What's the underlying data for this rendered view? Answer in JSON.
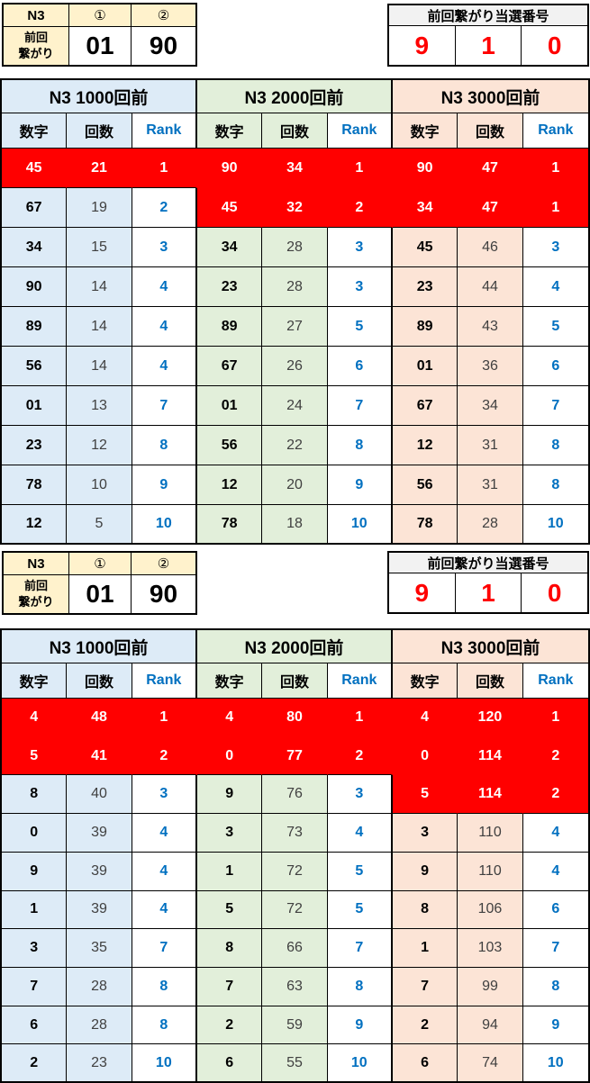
{
  "colors": {
    "red": "#FF0000",
    "blue": "#0070C0",
    "count_text": "#404040",
    "light_blue": "#DDEBF7",
    "light_green": "#E2EFDA",
    "light_orange": "#FCE4D6",
    "cream": "#FFF2CC",
    "box_header_gray": "#F2F2F2",
    "border": "#000000"
  },
  "sections": [
    {
      "link_table": {
        "title": "N3",
        "col1": "①",
        "col2": "②",
        "row_label": "前回\n繋がり",
        "values": [
          "01",
          "90"
        ]
      },
      "winning_box": {
        "title": "前回繋がり当選番号",
        "digits": [
          "9",
          "1",
          "0"
        ]
      },
      "main_table": {
        "col_headers": [
          "数字",
          "回数",
          "Rank"
        ],
        "groups": [
          {
            "title": "N3 1000回前",
            "color_key": "light_blue",
            "rows": [
              [
                "45",
                "21",
                "1"
              ],
              [
                "67",
                "19",
                "2"
              ],
              [
                "34",
                "15",
                "3"
              ],
              [
                "90",
                "14",
                "4"
              ],
              [
                "89",
                "14",
                "4"
              ],
              [
                "56",
                "14",
                "4"
              ],
              [
                "01",
                "13",
                "7"
              ],
              [
                "23",
                "12",
                "8"
              ],
              [
                "78",
                "10",
                "9"
              ],
              [
                "12",
                "5",
                "10"
              ]
            ]
          },
          {
            "title": "N3 2000回前",
            "color_key": "light_green",
            "rows": [
              [
                "90",
                "34",
                "1"
              ],
              [
                "45",
                "32",
                "2"
              ],
              [
                "34",
                "28",
                "3"
              ],
              [
                "23",
                "28",
                "3"
              ],
              [
                "89",
                "27",
                "5"
              ],
              [
                "67",
                "26",
                "6"
              ],
              [
                "01",
                "24",
                "7"
              ],
              [
                "56",
                "22",
                "8"
              ],
              [
                "12",
                "20",
                "9"
              ],
              [
                "78",
                "18",
                "10"
              ]
            ]
          },
          {
            "title": "N3 3000回前",
            "color_key": "light_orange",
            "rows": [
              [
                "90",
                "47",
                "1"
              ],
              [
                "34",
                "47",
                "1"
              ],
              [
                "45",
                "46",
                "3"
              ],
              [
                "23",
                "44",
                "4"
              ],
              [
                "89",
                "43",
                "5"
              ],
              [
                "01",
                "36",
                "6"
              ],
              [
                "67",
                "34",
                "7"
              ],
              [
                "12",
                "31",
                "8"
              ],
              [
                "56",
                "31",
                "8"
              ],
              [
                "78",
                "28",
                "10"
              ]
            ]
          }
        ],
        "red_spans": [
          {
            "row": 0,
            "from": 0,
            "to": 8
          },
          {
            "row": 1,
            "from": 3,
            "to": 8
          }
        ]
      }
    },
    {
      "link_table": {
        "title": "N3",
        "col1": "①",
        "col2": "②",
        "row_label": "前回\n繋がり",
        "values": [
          "01",
          "90"
        ]
      },
      "winning_box": {
        "title": "前回繋がり当選番号",
        "digits": [
          "9",
          "1",
          "0"
        ]
      },
      "main_table": {
        "col_headers": [
          "数字",
          "回数",
          "Rank"
        ],
        "groups": [
          {
            "title": "N3 1000回前",
            "color_key": "light_blue",
            "rows": [
              [
                "4",
                "48",
                "1"
              ],
              [
                "5",
                "41",
                "2"
              ],
              [
                "8",
                "40",
                "3"
              ],
              [
                "0",
                "39",
                "4"
              ],
              [
                "9",
                "39",
                "4"
              ],
              [
                "1",
                "39",
                "4"
              ],
              [
                "3",
                "35",
                "7"
              ],
              [
                "7",
                "28",
                "8"
              ],
              [
                "6",
                "28",
                "8"
              ],
              [
                "2",
                "23",
                "10"
              ]
            ]
          },
          {
            "title": "N3 2000回前",
            "color_key": "light_green",
            "rows": [
              [
                "4",
                "80",
                "1"
              ],
              [
                "0",
                "77",
                "2"
              ],
              [
                "9",
                "76",
                "3"
              ],
              [
                "3",
                "73",
                "4"
              ],
              [
                "1",
                "72",
                "5"
              ],
              [
                "5",
                "72",
                "5"
              ],
              [
                "8",
                "66",
                "7"
              ],
              [
                "7",
                "63",
                "8"
              ],
              [
                "2",
                "59",
                "9"
              ],
              [
                "6",
                "55",
                "10"
              ]
            ]
          },
          {
            "title": "N3 3000回前",
            "color_key": "light_orange",
            "rows": [
              [
                "4",
                "120",
                "1"
              ],
              [
                "0",
                "114",
                "2"
              ],
              [
                "5",
                "114",
                "2"
              ],
              [
                "3",
                "110",
                "4"
              ],
              [
                "9",
                "110",
                "4"
              ],
              [
                "8",
                "106",
                "6"
              ],
              [
                "1",
                "103",
                "7"
              ],
              [
                "7",
                "99",
                "8"
              ],
              [
                "2",
                "94",
                "9"
              ],
              [
                "6",
                "74",
                "10"
              ]
            ]
          }
        ],
        "red_spans": [
          {
            "row": 0,
            "from": 0,
            "to": 8
          },
          {
            "row": 1,
            "from": 0,
            "to": 8
          },
          {
            "row": 2,
            "from": 6,
            "to": 8
          }
        ]
      }
    }
  ]
}
